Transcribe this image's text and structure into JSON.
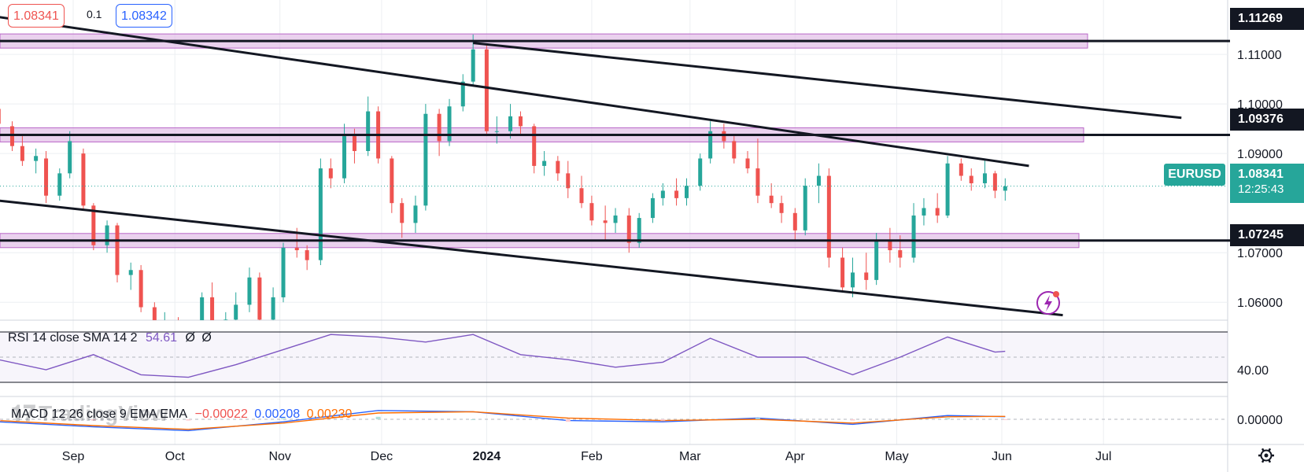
{
  "symbol": "EURUSD",
  "header": {
    "bid": "1.08341",
    "ask": "1.08342",
    "spread": "0.1"
  },
  "price_tag": {
    "price": "1.08341",
    "countdown": "12:25:43"
  },
  "levels": [
    "1.11269",
    "1.09376",
    "1.07245"
  ],
  "watermark": "TradingView",
  "rsi_legend": {
    "name": "RSI 14 close SMA 14 2",
    "value": "54.61",
    "na1": "Ø",
    "na2": "Ø"
  },
  "macd_legend": {
    "name": "MACD 12 26 close 9 EMA EMA",
    "hist": "−0.00022",
    "macd": "0.00208",
    "signal": "0.00230"
  },
  "colors": {
    "up": "#26a69a",
    "down": "#ef5350",
    "zone": "#e1bee7",
    "rsi": "#7e57c2",
    "macd": "#2962ff",
    "signal": "#ff6d00"
  },
  "settings_icon": "gear-icon",
  "alert_icon": "lightning-alert-icon",
  "chart_data": [
    {
      "type": "candlestick",
      "title": "EURUSD",
      "x_ticks": [
        "Sep",
        "Oct",
        "Nov",
        "Dec",
        "2024",
        "Feb",
        "Mar",
        "Apr",
        "May",
        "Jun",
        "Jul"
      ],
      "y_ticks": [
        "1.11000",
        "1.10000",
        "1.09000",
        "1.07000",
        "1.06000"
      ],
      "ylim": [
        1.0575,
        1.1162
      ],
      "last": 1.08341,
      "horizontal_zones": [
        1.11269,
        1.09376,
        1.07245
      ],
      "trendlines": [
        {
          "from": [
            "2023-07-16",
            1.12
          ],
          "to": [
            "2024-06-09",
            1.0875
          ]
        },
        {
          "from": [
            "2023-12-28",
            1.1123
          ],
          "to": [
            "2024-07-24",
            1.0972
          ]
        },
        {
          "from": [
            "2023-08-10",
            1.0805
          ],
          "to": [
            "2024-06-19",
            1.0574
          ]
        }
      ],
      "candles": [
        [
          "2023-08-10",
          1.099,
          1.1,
          1.095,
          1.096
        ],
        [
          "2023-08-14",
          1.0955,
          1.0965,
          1.0905,
          1.0915
        ],
        [
          "2023-08-17",
          1.0915,
          1.0935,
          1.0875,
          1.0885
        ],
        [
          "2023-08-21",
          1.0885,
          1.091,
          1.086,
          1.0895
        ],
        [
          "2023-08-24",
          1.089,
          1.0905,
          1.08,
          1.0815
        ],
        [
          "2023-08-28",
          1.0815,
          1.087,
          1.0805,
          1.086
        ],
        [
          "2023-08-31",
          1.086,
          1.0945,
          1.085,
          1.0925
        ],
        [
          "2023-09-04",
          1.09,
          1.091,
          1.0785,
          1.0795
        ],
        [
          "2023-09-07",
          1.0795,
          1.08,
          1.0705,
          1.0715
        ],
        [
          "2023-09-11",
          1.0715,
          1.0765,
          1.07,
          1.0755
        ],
        [
          "2023-09-14",
          1.0755,
          1.076,
          1.064,
          1.0655
        ],
        [
          "2023-09-18",
          1.0655,
          1.068,
          1.0625,
          1.0665
        ],
        [
          "2023-09-21",
          1.0665,
          1.0675,
          1.058,
          1.059
        ],
        [
          "2023-09-25",
          1.059,
          1.06,
          1.048,
          1.05
        ],
        [
          "2023-09-28",
          1.05,
          1.058,
          1.049,
          1.056
        ],
        [
          "2023-10-02",
          1.056,
          1.057,
          1.045,
          1.047
        ],
        [
          "2023-10-05",
          1.047,
          1.056,
          1.046,
          1.054
        ],
        [
          "2023-10-09",
          1.054,
          1.062,
          1.053,
          1.061
        ],
        [
          "2023-10-12",
          1.061,
          1.064,
          1.05,
          1.0515
        ],
        [
          "2023-10-16",
          1.0515,
          1.058,
          1.051,
          1.0565
        ],
        [
          "2023-10-19",
          1.0565,
          1.062,
          1.054,
          1.0595
        ],
        [
          "2023-10-23",
          1.0595,
          1.067,
          1.058,
          1.065
        ],
        [
          "2023-10-26",
          1.065,
          1.066,
          1.054,
          1.0565
        ],
        [
          "2023-10-30",
          1.0565,
          1.063,
          1.054,
          1.061
        ],
        [
          "2023-11-02",
          1.061,
          1.072,
          1.06,
          1.071
        ],
        [
          "2023-11-06",
          1.071,
          1.075,
          1.069,
          1.0705
        ],
        [
          "2023-11-09",
          1.0705,
          1.0715,
          1.0665,
          1.0685
        ],
        [
          "2023-11-13",
          1.0685,
          1.089,
          1.0675,
          1.087
        ],
        [
          "2023-11-16",
          1.087,
          1.089,
          1.083,
          1.085
        ],
        [
          "2023-11-20",
          1.085,
          1.096,
          1.084,
          1.0935
        ],
        [
          "2023-11-23",
          1.0935,
          1.095,
          1.088,
          1.0905
        ],
        [
          "2023-11-27",
          1.0905,
          1.1015,
          1.0895,
          1.0985
        ],
        [
          "2023-11-30",
          1.0985,
          1.0995,
          1.088,
          1.089
        ],
        [
          "2023-12-04",
          1.089,
          1.0895,
          1.078,
          1.08
        ],
        [
          "2023-12-07",
          1.08,
          1.081,
          1.073,
          1.076
        ],
        [
          "2023-12-11",
          1.076,
          1.0815,
          1.074,
          1.0795
        ],
        [
          "2023-12-14",
          1.0795,
          1.1,
          1.0785,
          1.098
        ],
        [
          "2023-12-18",
          1.098,
          1.099,
          1.0895,
          1.0925
        ],
        [
          "2023-12-21",
          1.0925,
          1.101,
          1.0915,
          1.0995
        ],
        [
          "2023-12-25",
          1.0995,
          1.106,
          1.0985,
          1.1045
        ],
        [
          "2023-12-28",
          1.1045,
          1.114,
          1.1035,
          1.111
        ],
        [
          "2024-01-01",
          1.111,
          1.112,
          1.0935,
          1.0945
        ],
        [
          "2024-01-04",
          1.0945,
          1.0975,
          1.092,
          1.0945
        ],
        [
          "2024-01-08",
          1.0945,
          1.1,
          1.093,
          1.0975
        ],
        [
          "2024-01-11",
          1.0975,
          1.0985,
          1.094,
          1.0955
        ],
        [
          "2024-01-15",
          1.0955,
          1.096,
          1.086,
          1.0875
        ],
        [
          "2024-01-18",
          1.0875,
          1.0905,
          1.0855,
          1.0885
        ],
        [
          "2024-01-22",
          1.0885,
          1.0895,
          1.0845,
          1.086
        ],
        [
          "2024-01-25",
          1.086,
          1.0885,
          1.081,
          1.083
        ],
        [
          "2024-01-29",
          1.083,
          1.0855,
          1.079,
          1.08
        ],
        [
          "2024-02-01",
          1.08,
          1.0815,
          1.0755,
          1.0765
        ],
        [
          "2024-02-05",
          1.0765,
          1.0795,
          1.0725,
          1.076
        ],
        [
          "2024-02-08",
          1.076,
          1.079,
          1.074,
          1.0775
        ],
        [
          "2024-02-12",
          1.0775,
          1.079,
          1.07,
          1.072
        ],
        [
          "2024-02-15",
          1.072,
          1.078,
          1.071,
          1.077
        ],
        [
          "2024-02-19",
          1.077,
          1.082,
          1.076,
          1.081
        ],
        [
          "2024-02-22",
          1.081,
          1.084,
          1.0795,
          1.0825
        ],
        [
          "2024-02-26",
          1.0825,
          1.085,
          1.0795,
          1.081
        ],
        [
          "2024-02-29",
          1.081,
          1.085,
          1.0795,
          1.0835
        ],
        [
          "2024-03-04",
          1.0835,
          1.09,
          1.0825,
          1.089
        ],
        [
          "2024-03-07",
          1.089,
          1.0965,
          1.088,
          1.0945
        ],
        [
          "2024-03-11",
          1.0945,
          1.096,
          1.091,
          1.0925
        ],
        [
          "2024-03-14",
          1.0925,
          1.0935,
          1.088,
          1.089
        ],
        [
          "2024-03-18",
          1.089,
          1.0905,
          1.086,
          1.087
        ],
        [
          "2024-03-21",
          1.087,
          1.093,
          1.08,
          1.0815
        ],
        [
          "2024-03-25",
          1.0815,
          1.084,
          1.079,
          1.08
        ],
        [
          "2024-03-28",
          1.08,
          1.0815,
          1.076,
          1.078
        ],
        [
          "2024-04-01",
          1.078,
          1.079,
          1.0725,
          1.0745
        ],
        [
          "2024-04-04",
          1.0745,
          1.085,
          1.0735,
          1.0835
        ],
        [
          "2024-04-08",
          1.0835,
          1.088,
          1.08,
          1.0855
        ],
        [
          "2024-04-11",
          1.0855,
          1.087,
          1.067,
          1.069
        ],
        [
          "2024-04-15",
          1.069,
          1.071,
          1.062,
          1.063
        ],
        [
          "2024-04-18",
          1.063,
          1.069,
          1.061,
          1.066
        ],
        [
          "2024-04-22",
          1.066,
          1.07,
          1.0625,
          1.0645
        ],
        [
          "2024-04-25",
          1.0645,
          1.074,
          1.0635,
          1.0725
        ],
        [
          "2024-04-29",
          1.0725,
          1.075,
          1.068,
          1.0705
        ],
        [
          "2024-05-02",
          1.0705,
          1.0735,
          1.067,
          1.069
        ],
        [
          "2024-05-06",
          1.069,
          1.08,
          1.068,
          1.0775
        ],
        [
          "2024-05-09",
          1.0775,
          1.081,
          1.0755,
          1.079
        ],
        [
          "2024-05-13",
          1.079,
          1.082,
          1.076,
          1.0775
        ],
        [
          "2024-05-16",
          1.0775,
          1.0895,
          1.077,
          1.088
        ],
        [
          "2024-05-20",
          1.088,
          1.089,
          1.0845,
          1.0855
        ],
        [
          "2024-05-23",
          1.0855,
          1.087,
          1.0825,
          1.084
        ],
        [
          "2024-05-27",
          1.084,
          1.089,
          1.083,
          1.086
        ],
        [
          "2024-05-30",
          1.086,
          1.0865,
          1.081,
          1.0825
        ],
        [
          "2024-06-02",
          1.0825,
          1.085,
          1.0805,
          1.0834
        ]
      ]
    },
    {
      "type": "line",
      "title": "RSI 14 close SMA 14 2",
      "y_ticks": [
        "40.00"
      ],
      "ylim": [
        25,
        75
      ],
      "series": [
        {
          "name": "RSI",
          "x": [
            "2023-08-10",
            "2023-08-24",
            "2023-09-07",
            "2023-09-21",
            "2023-10-05",
            "2023-10-19",
            "2023-11-02",
            "2023-11-16",
            "2023-11-30",
            "2023-12-14",
            "2023-12-28",
            "2024-01-11",
            "2024-01-25",
            "2024-02-08",
            "2024-02-22",
            "2024-03-07",
            "2024-03-21",
            "2024-04-04",
            "2024-04-18",
            "2024-05-02",
            "2024-05-16",
            "2024-05-30",
            "2024-06-02"
          ],
          "y": [
            48,
            40,
            52,
            36,
            34,
            44,
            56,
            68,
            66,
            62,
            68,
            52,
            48,
            42,
            46,
            65,
            50,
            50,
            36,
            50,
            66,
            54,
            54.61
          ]
        }
      ]
    },
    {
      "type": "line",
      "title": "MACD 12 26 close 9 EMA EMA",
      "y_ticks": [
        "0.00000"
      ],
      "ylim": [
        -0.012,
        0.012
      ],
      "series": [
        {
          "name": "MACD",
          "x": [
            "2023-08-10",
            "2023-09-07",
            "2023-10-05",
            "2023-11-02",
            "2023-11-30",
            "2023-12-28",
            "2024-01-25",
            "2024-02-22",
            "2024-03-21",
            "2024-04-18",
            "2024-05-16",
            "2024-06-02"
          ],
          "y": [
            -0.002,
            -0.006,
            -0.009,
            -0.002,
            0.007,
            0.006,
            -0.001,
            -0.002,
            0.001,
            -0.004,
            0.003,
            0.00208
          ]
        },
        {
          "name": "Signal",
          "x": [
            "2023-08-10",
            "2023-09-07",
            "2023-10-05",
            "2023-11-02",
            "2023-11-30",
            "2023-12-28",
            "2024-01-25",
            "2024-02-22",
            "2024-03-21",
            "2024-04-18",
            "2024-05-16",
            "2024-06-02"
          ],
          "y": [
            -0.001,
            -0.005,
            -0.008,
            -0.003,
            0.005,
            0.006,
            0.001,
            -0.001,
            0.0,
            -0.003,
            0.002,
            0.0023
          ]
        }
      ]
    }
  ]
}
